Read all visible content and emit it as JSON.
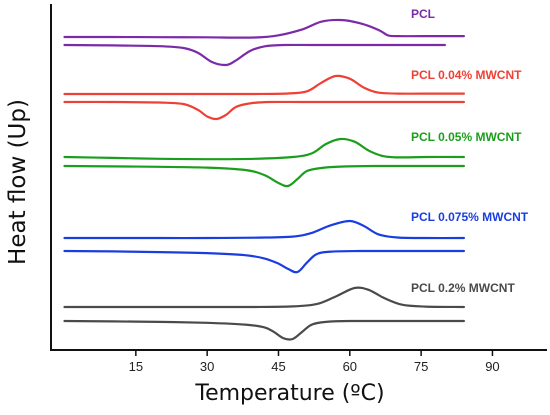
{
  "chart_data": {
    "type": "line",
    "title": "",
    "xlabel": "Temperature (ºC)",
    "ylabel": "Heat flow (Up)",
    "xlim": [
      -2,
      100
    ],
    "xticks": [
      15,
      30,
      45,
      60,
      75,
      90
    ],
    "y_axis_values_shown": false,
    "grid": false,
    "legend": "inline labels at right of each curve pair",
    "series": [
      {
        "name": "PCL",
        "color": "#7b2aa8",
        "label_position": "top-right",
        "heating": {
          "x": [
            0,
            10,
            20,
            30,
            40,
            45,
            50,
            54,
            58,
            62,
            66,
            68,
            70,
            78,
            84
          ],
          "y": [
            0.0,
            0.0,
            -0.01,
            -0.02,
            -0.03,
            0.1,
            0.45,
            0.9,
            1.0,
            0.82,
            0.42,
            0.1,
            0.05,
            0.05,
            0.05
          ]
        },
        "cooling": {
          "x": [
            0,
            10,
            20,
            25,
            28,
            31,
            34,
            36,
            39,
            42,
            46,
            52,
            60,
            70,
            80
          ],
          "y": [
            0.0,
            -0.02,
            -0.06,
            -0.15,
            -0.38,
            -0.85,
            -1.0,
            -0.78,
            -0.3,
            -0.07,
            0.0,
            0.0,
            0.0,
            0.0,
            0.0
          ]
        }
      },
      {
        "name": "PCL 0.04% MWCNT",
        "color": "#ee4035",
        "label_position": "right",
        "heating": {
          "x": [
            0,
            10,
            20,
            30,
            40,
            47,
            51,
            54,
            57,
            60,
            63,
            66,
            70,
            78,
            84
          ],
          "y": [
            0.0,
            0.0,
            0.0,
            0.0,
            0.0,
            0.03,
            0.15,
            0.62,
            1.0,
            0.85,
            0.35,
            0.08,
            0.02,
            0.02,
            0.02
          ]
        },
        "cooling": {
          "x": [
            0,
            10,
            20,
            25,
            28,
            30,
            32,
            34,
            36,
            39,
            43,
            50,
            60,
            70,
            84
          ],
          "y": [
            0.0,
            0.0,
            -0.03,
            -0.12,
            -0.45,
            -0.85,
            -1.0,
            -0.75,
            -0.3,
            -0.08,
            0.0,
            0.0,
            0.0,
            0.0,
            0.0
          ]
        }
      },
      {
        "name": "PCL 0.05% MWCNT",
        "color": "#1b9e1b",
        "label_position": "right",
        "heating": {
          "x": [
            0,
            10,
            20,
            30,
            40,
            48,
            52,
            55,
            58,
            61,
            64,
            67,
            70,
            76,
            84
          ],
          "y": [
            0.0,
            -0.05,
            -0.1,
            -0.12,
            -0.1,
            0.0,
            0.2,
            0.72,
            1.0,
            0.85,
            0.35,
            0.05,
            -0.02,
            0.0,
            0.0
          ]
        },
        "cooling": {
          "x": [
            0,
            10,
            20,
            30,
            38,
            42,
            45,
            47,
            49,
            51,
            54,
            58,
            65,
            75,
            84
          ],
          "y": [
            0.0,
            -0.02,
            -0.04,
            -0.08,
            -0.2,
            -0.45,
            -0.85,
            -1.0,
            -0.65,
            -0.25,
            -0.1,
            -0.03,
            0.0,
            0.0,
            0.0
          ]
        }
      },
      {
        "name": "PCL 0.075% MWCNT",
        "color": "#1a3de0",
        "label_position": "right",
        "heating": {
          "x": [
            0,
            10,
            20,
            30,
            40,
            48,
            52,
            56,
            60,
            63,
            66,
            70,
            76,
            84
          ],
          "y": [
            0.0,
            0.0,
            0.0,
            0.0,
            0.02,
            0.08,
            0.3,
            0.75,
            1.0,
            0.7,
            0.22,
            0.03,
            0.0,
            0.0
          ]
        },
        "cooling": {
          "x": [
            0,
            10,
            20,
            30,
            38,
            42,
            45,
            47,
            49,
            51,
            53,
            56,
            62,
            70,
            84
          ],
          "y": [
            0.0,
            -0.02,
            -0.05,
            -0.1,
            -0.2,
            -0.35,
            -0.6,
            -0.85,
            -1.0,
            -0.55,
            -0.15,
            -0.03,
            0.0,
            0.0,
            0.0
          ]
        }
      },
      {
        "name": "PCL 0.2% MWCNT",
        "color": "#4a4a4a",
        "label_position": "right",
        "heating": {
          "x": [
            0,
            10,
            20,
            30,
            40,
            48,
            53,
            57,
            61,
            64,
            67,
            71,
            76,
            84
          ],
          "y": [
            0.0,
            0.0,
            0.0,
            0.0,
            0.0,
            0.03,
            0.15,
            0.55,
            1.0,
            0.9,
            0.5,
            0.12,
            0.02,
            0.0
          ]
        },
        "cooling": {
          "x": [
            0,
            10,
            20,
            30,
            38,
            42,
            44,
            46,
            48,
            50,
            52,
            55,
            60,
            70,
            84
          ],
          "y": [
            0.0,
            -0.02,
            -0.05,
            -0.1,
            -0.2,
            -0.35,
            -0.6,
            -0.95,
            -1.0,
            -0.6,
            -0.2,
            -0.05,
            0.0,
            0.0,
            0.0
          ]
        }
      }
    ]
  }
}
